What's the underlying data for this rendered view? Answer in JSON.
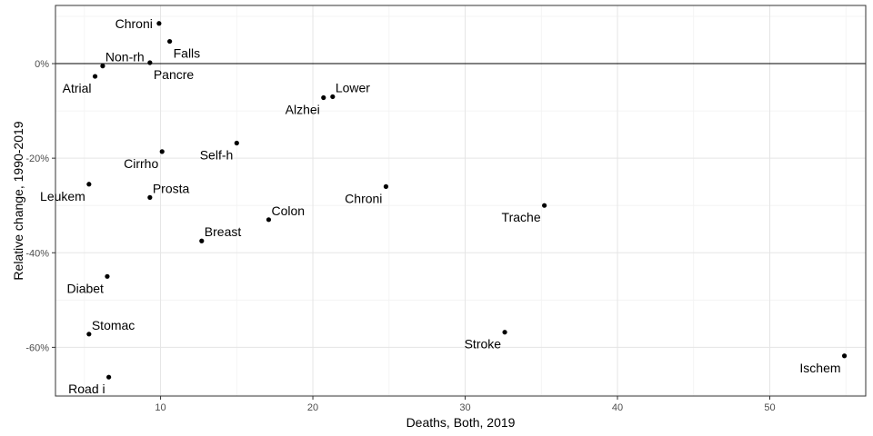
{
  "chart_data": {
    "type": "scatter",
    "xlabel": "Deaths, Both, 2019",
    "ylabel": "Relative change, 1990-2019",
    "xlim": [
      3.1,
      56.3
    ],
    "ylim": [
      -70.3,
      12.3
    ],
    "x_ticks": [
      10,
      20,
      30,
      40,
      50
    ],
    "x_tick_labels": [
      "10",
      "20",
      "30",
      "40",
      "50"
    ],
    "y_ticks": [
      0,
      -20,
      -40,
      -60
    ],
    "y_tick_labels": [
      "0%",
      "-20%",
      "-40%",
      "-60%"
    ],
    "grid": true,
    "reference_line_y": 0,
    "points": [
      {
        "label": "Chroni",
        "x": 9.9,
        "y": 8.5,
        "label_pos": "left"
      },
      {
        "label": "Falls",
        "x": 10.6,
        "y": 4.7,
        "label_pos": "below-right"
      },
      {
        "label": "Non-rh",
        "x": 6.2,
        "y": -0.5,
        "label_pos": "above-right"
      },
      {
        "label": "Pancre",
        "x": 9.3,
        "y": 0.2,
        "label_pos": "below-right"
      },
      {
        "label": "Atrial",
        "x": 5.7,
        "y": -2.7,
        "label_pos": "below-left"
      },
      {
        "label": "Lower",
        "x": 21.3,
        "y": -7.0,
        "label_pos": "above-right"
      },
      {
        "label": "Alzhei",
        "x": 20.7,
        "y": -7.2,
        "label_pos": "below-left"
      },
      {
        "label": "Self-h",
        "x": 15.0,
        "y": -16.8,
        "label_pos": "below-left"
      },
      {
        "label": "Cirrho",
        "x": 10.1,
        "y": -18.6,
        "label_pos": "below-left"
      },
      {
        "label": "Leukem",
        "x": 5.3,
        "y": -25.5,
        "label_pos": "below-left"
      },
      {
        "label": "Chroni",
        "x": 24.8,
        "y": -26.0,
        "label_pos": "below-left"
      },
      {
        "label": "Prosta",
        "x": 9.3,
        "y": -28.3,
        "label_pos": "above-right"
      },
      {
        "label": "Trache",
        "x": 35.2,
        "y": -30.0,
        "label_pos": "below-left"
      },
      {
        "label": "Colon",
        "x": 17.1,
        "y": -33.0,
        "label_pos": "above-right"
      },
      {
        "label": "Breast",
        "x": 12.7,
        "y": -37.5,
        "label_pos": "above-right"
      },
      {
        "label": "Diabet",
        "x": 6.5,
        "y": -45.0,
        "label_pos": "below-left"
      },
      {
        "label": "Stomac",
        "x": 5.3,
        "y": -57.2,
        "label_pos": "above-right"
      },
      {
        "label": "Stroke",
        "x": 32.6,
        "y": -56.8,
        "label_pos": "below-left"
      },
      {
        "label": "Ischem",
        "x": 54.9,
        "y": -61.8,
        "label_pos": "below-left"
      },
      {
        "label": "Road i",
        "x": 6.6,
        "y": -66.3,
        "label_pos": "below-left"
      }
    ]
  }
}
